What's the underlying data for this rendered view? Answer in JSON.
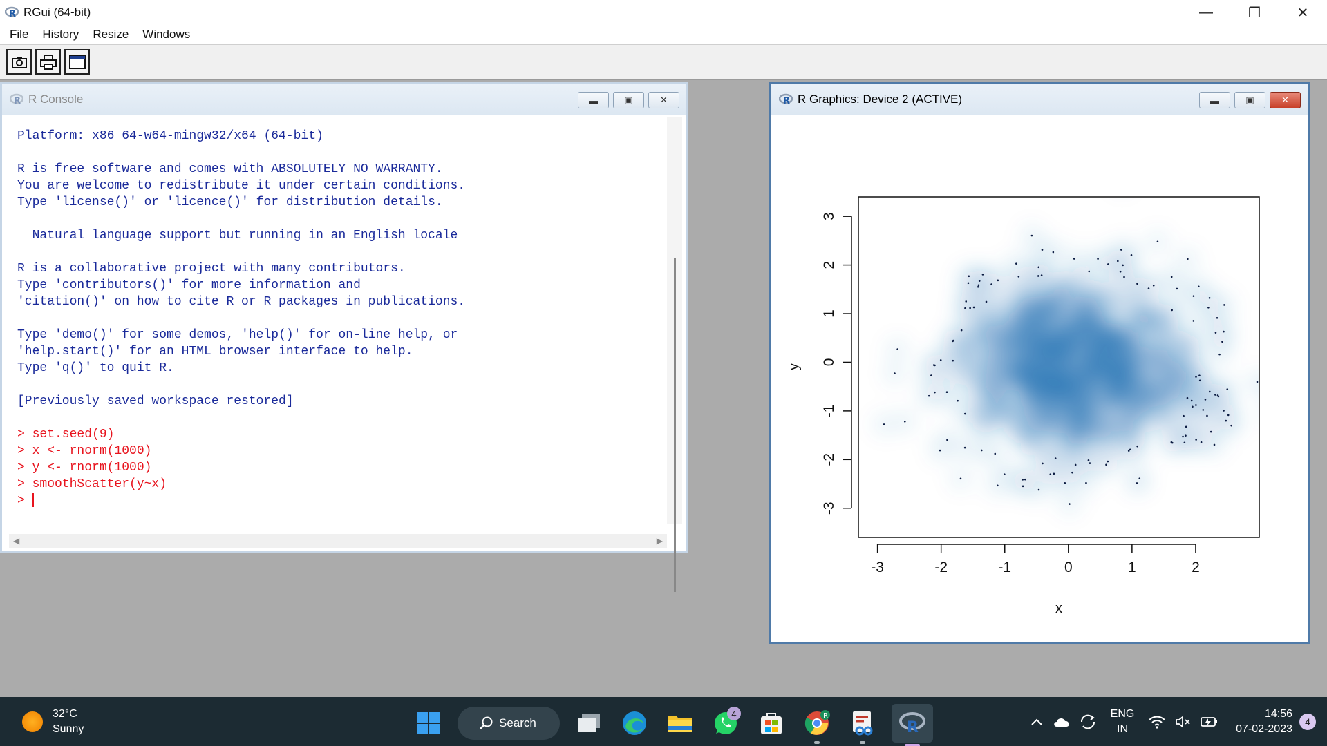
{
  "app": {
    "title": "RGui (64-bit)"
  },
  "menu": [
    "File",
    "History",
    "Resize",
    "Windows"
  ],
  "console": {
    "title": "R Console",
    "lines": [
      {
        "text": "Platform: x86_64-w64-mingw32/x64 (64-bit)",
        "type": "out"
      },
      {
        "text": "",
        "type": "out"
      },
      {
        "text": "R is free software and comes with ABSOLUTELY NO WARRANTY.",
        "type": "out"
      },
      {
        "text": "You are welcome to redistribute it under certain conditions.",
        "type": "out"
      },
      {
        "text": "Type 'license()' or 'licence()' for distribution details.",
        "type": "out"
      },
      {
        "text": "",
        "type": "out"
      },
      {
        "text": "  Natural language support but running in an English locale",
        "type": "out"
      },
      {
        "text": "",
        "type": "out"
      },
      {
        "text": "R is a collaborative project with many contributors.",
        "type": "out"
      },
      {
        "text": "Type 'contributors()' for more information and",
        "type": "out"
      },
      {
        "text": "'citation()' on how to cite R or R packages in publications.",
        "type": "out"
      },
      {
        "text": "",
        "type": "out"
      },
      {
        "text": "Type 'demo()' for some demos, 'help()' for on-line help, or",
        "type": "out"
      },
      {
        "text": "'help.start()' for an HTML browser interface to help.",
        "type": "out"
      },
      {
        "text": "Type 'q()' to quit R.",
        "type": "out"
      },
      {
        "text": "",
        "type": "out"
      },
      {
        "text": "[Previously saved workspace restored]",
        "type": "out"
      },
      {
        "text": "",
        "type": "out"
      },
      {
        "text": "> set.seed(9)",
        "type": "cmd"
      },
      {
        "text": "> x <- rnorm(1000)",
        "type": "cmd"
      },
      {
        "text": "> y <- rnorm(1000)",
        "type": "cmd"
      },
      {
        "text": "> smoothScatter(y~x)",
        "type": "cmd"
      }
    ],
    "prompt": "> "
  },
  "graphics": {
    "title": "R Graphics: Device 2 (ACTIVE)"
  },
  "chart_data": {
    "type": "heatmap",
    "title": "",
    "xlabel": "x",
    "ylabel": "y",
    "xlim": [
      -3.3,
      3.0
    ],
    "ylim": [
      -3.6,
      3.4
    ],
    "xticks": [
      -3,
      -2,
      -1,
      0,
      1,
      2
    ],
    "yticks": [
      -3,
      -2,
      -1,
      0,
      1,
      2,
      3
    ],
    "density_center": [
      0.3,
      -0.2
    ],
    "color": "#1f6fb4",
    "grid": false
  },
  "taskbar": {
    "weather_temp": "32°C",
    "weather_desc": "Sunny",
    "search_label": "Search",
    "whatsapp_badge": "4",
    "lang_top": "ENG",
    "lang_bottom": "IN",
    "time": "14:56",
    "date": "07-02-2023",
    "notifications": "4"
  }
}
